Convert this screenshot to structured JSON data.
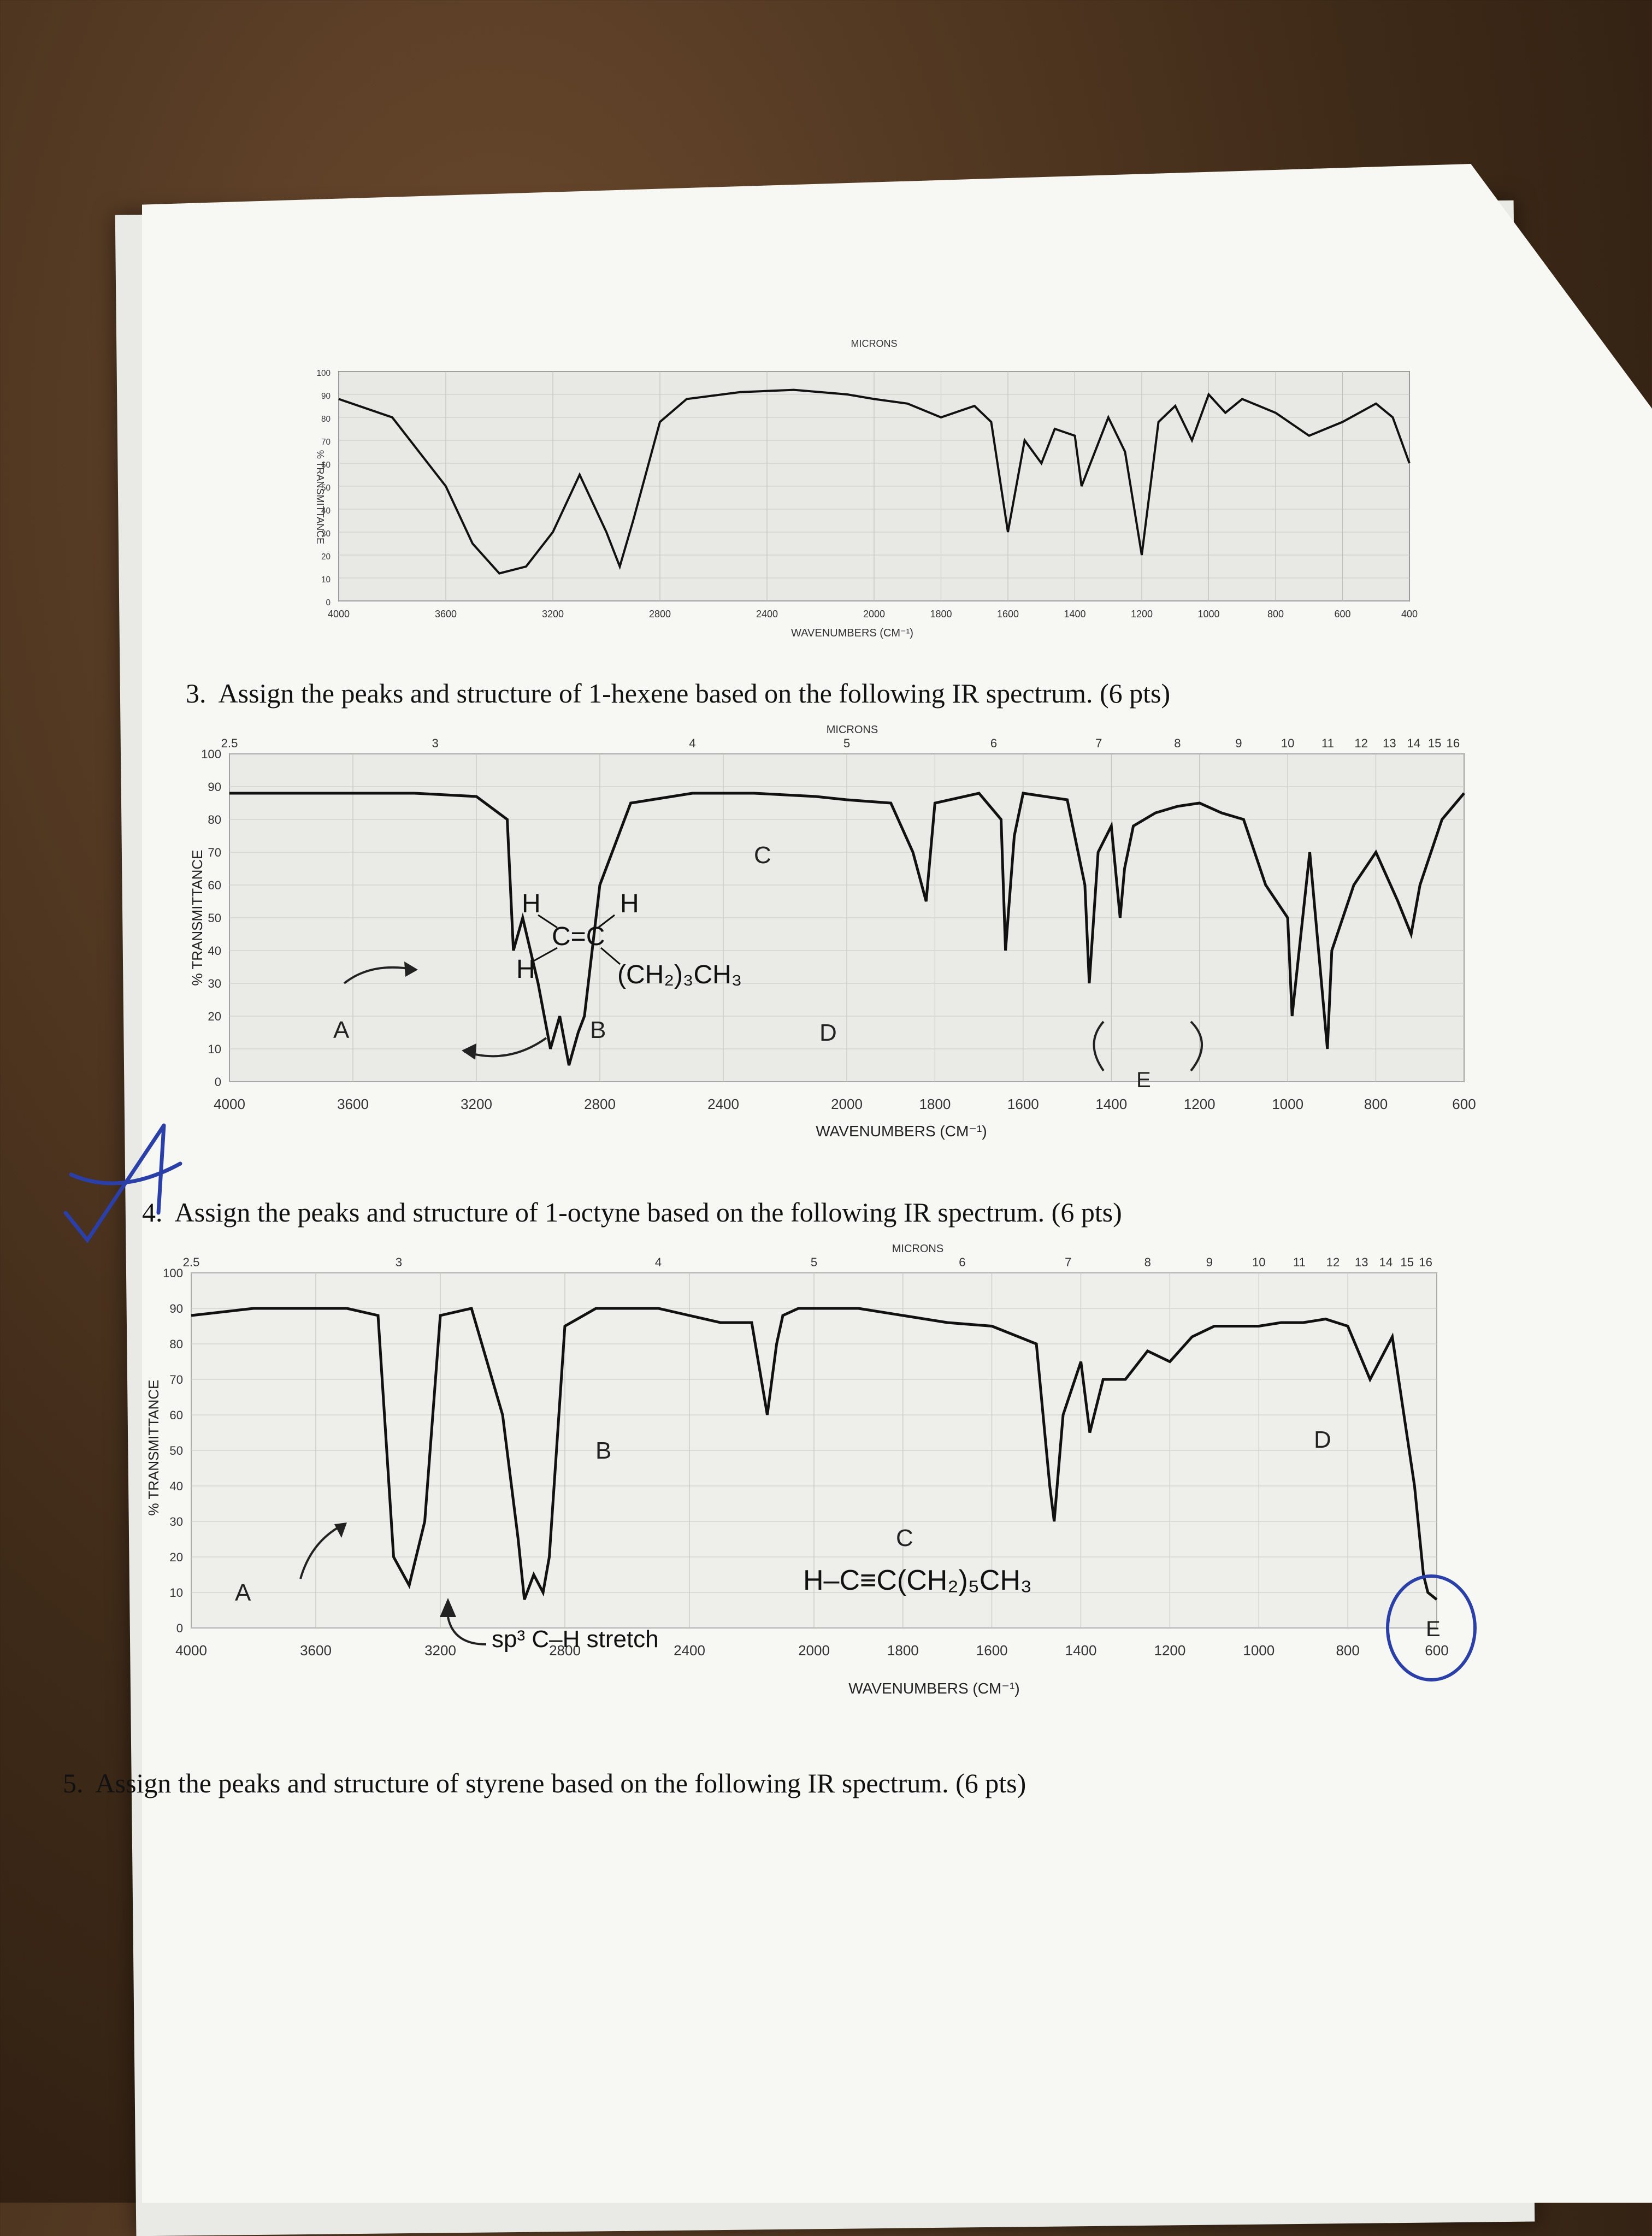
{
  "questions": [
    {
      "number": "3.",
      "text": "Assign the peaks and structure of 1-hexene based on the following IR spectrum. (6 pts)"
    },
    {
      "number": "4.",
      "text": "Assign the peaks and structure of 1-octyne based on the following IR spectrum. (6 pts)"
    },
    {
      "number": "5.",
      "text": "Assign the peaks and structure of styrene based on the following IR spectrum. (6 pts)"
    }
  ],
  "shared_axes": {
    "y_label": "% TRANSMITTANCE",
    "x_label": "WAVENUMBERS (CM⁻¹)",
    "microns_label": "MICRONS",
    "y_ticks": [
      "0",
      "10",
      "20",
      "30",
      "40",
      "50",
      "60",
      "70",
      "80",
      "90",
      "100"
    ],
    "x_ticks": [
      "4000",
      "3600",
      "3200",
      "2800",
      "2400",
      "2000",
      "1800",
      "1600",
      "1400",
      "1200",
      "1000",
      "800",
      "600"
    ],
    "micron_ticks": [
      "2.5",
      "3",
      "4",
      "5",
      "6",
      "7",
      "8",
      "9",
      "10",
      "11",
      "12",
      "13",
      "14",
      "15",
      "16"
    ]
  },
  "spectrum1": {
    "microns_label": "MICRONS",
    "y_label": "% TRANSMITTANCE",
    "x_label": "WAVENUMBERS (CM⁻¹)",
    "x_ticks": [
      "4000",
      "3600",
      "3200",
      "2800",
      "2400",
      "2000",
      "1800",
      "1600",
      "1400",
      "1200",
      "1000",
      "800",
      "600",
      "400"
    ]
  },
  "spectrum2": {
    "annotations": {
      "A": "A",
      "B": "B",
      "C": "C",
      "D": "D",
      "E": "E"
    },
    "structure": {
      "h1": "H",
      "h2": "H",
      "h3": "H",
      "bond": "C=C",
      "chain": "(CH₂)₃CH₃"
    }
  },
  "spectrum3": {
    "annotations": {
      "A": "A",
      "B": "B",
      "C": "C",
      "D": "D",
      "E": "E"
    },
    "structure": "H–C≡C(CH₂)₅CH₃",
    "note": "sp³ C–H stretch"
  },
  "chart_data": [
    {
      "type": "line",
      "title": "",
      "xlabel": "WAVENUMBERS (CM⁻¹)",
      "ylabel": "% TRANSMITTANCE",
      "xlim": [
        4000,
        400
      ],
      "ylim": [
        0,
        100
      ],
      "series": [
        {
          "x": [
            4000,
            3800,
            3600,
            3500,
            3400,
            3300,
            3200,
            3100,
            3000,
            2950,
            2900,
            2800,
            2700,
            2500,
            2300,
            2100,
            2000,
            1900,
            1800,
            1700,
            1650,
            1600,
            1550,
            1500,
            1460,
            1400,
            1380,
            1300,
            1250,
            1200,
            1150,
            1100,
            1050,
            1000,
            950,
            900,
            850,
            800,
            700,
            600,
            500,
            450,
            400
          ],
          "y": [
            88,
            80,
            50,
            25,
            12,
            15,
            30,
            55,
            30,
            15,
            35,
            78,
            88,
            91,
            92,
            90,
            88,
            86,
            80,
            85,
            78,
            30,
            70,
            60,
            75,
            72,
            50,
            80,
            65,
            20,
            78,
            85,
            70,
            90,
            82,
            88,
            85,
            82,
            72,
            78,
            86,
            80,
            60
          ]
        }
      ]
    },
    {
      "type": "line",
      "title": "",
      "xlabel": "WAVENUMBERS (CM⁻¹)",
      "ylabel": "% TRANSMITTANCE",
      "xlim": [
        4000,
        600
      ],
      "ylim": [
        0,
        100
      ],
      "series": [
        {
          "x": [
            4000,
            3800,
            3600,
            3400,
            3200,
            3100,
            3080,
            3050,
            3000,
            2960,
            2930,
            2900,
            2870,
            2850,
            2800,
            2700,
            2500,
            2300,
            2100,
            2000,
            1900,
            1850,
            1820,
            1800,
            1700,
            1650,
            1640,
            1620,
            1600,
            1500,
            1460,
            1450,
            1430,
            1400,
            1380,
            1370,
            1350,
            1300,
            1250,
            1200,
            1150,
            1100,
            1050,
            1000,
            990,
            950,
            910,
            900,
            850,
            800,
            750,
            720,
            700,
            650,
            600
          ],
          "y": [
            88,
            88,
            88,
            88,
            87,
            80,
            40,
            50,
            30,
            10,
            20,
            5,
            15,
            20,
            60,
            85,
            88,
            88,
            87,
            86,
            85,
            70,
            55,
            85,
            88,
            80,
            40,
            75,
            88,
            86,
            60,
            30,
            70,
            78,
            50,
            65,
            78,
            82,
            84,
            85,
            82,
            80,
            60,
            50,
            20,
            70,
            10,
            40,
            60,
            70,
            55,
            45,
            60,
            80,
            88
          ]
        }
      ]
    },
    {
      "type": "line",
      "title": "",
      "xlabel": "WAVENUMBERS (CM⁻¹)",
      "ylabel": "% TRANSMITTANCE",
      "xlim": [
        4000,
        600
      ],
      "ylim": [
        0,
        100
      ],
      "series": [
        {
          "x": [
            4000,
            3800,
            3700,
            3600,
            3500,
            3400,
            3350,
            3300,
            3250,
            3200,
            3100,
            3000,
            2950,
            2930,
            2900,
            2870,
            2850,
            2800,
            2700,
            2600,
            2500,
            2400,
            2300,
            2200,
            2150,
            2120,
            2100,
            2050,
            2000,
            1900,
            1800,
            1700,
            1600,
            1500,
            1470,
            1460,
            1440,
            1400,
            1380,
            1350,
            1300,
            1250,
            1200,
            1150,
            1100,
            1050,
            1000,
            950,
            900,
            850,
            800,
            750,
            700,
            650,
            630,
            620,
            600
          ],
          "y": [
            88,
            90,
            90,
            90,
            90,
            88,
            20,
            12,
            30,
            88,
            90,
            60,
            25,
            8,
            15,
            10,
            20,
            85,
            90,
            90,
            90,
            88,
            86,
            86,
            60,
            80,
            88,
            90,
            90,
            90,
            88,
            86,
            85,
            80,
            40,
            30,
            60,
            75,
            55,
            70,
            70,
            78,
            75,
            82,
            85,
            85,
            85,
            86,
            86,
            87,
            85,
            70,
            82,
            40,
            15,
            10,
            8
          ]
        }
      ]
    }
  ]
}
